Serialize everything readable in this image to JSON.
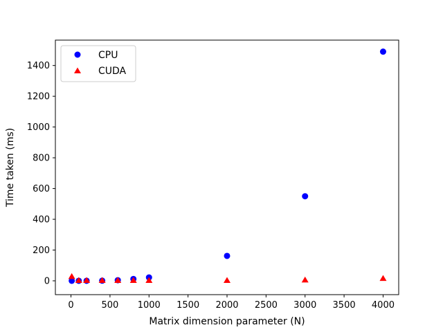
{
  "chart_data": {
    "type": "scatter",
    "title": "",
    "xlabel": "Matrix dimension parameter (N)",
    "ylabel": "Time taken (ms)",
    "xlim": [
      -200,
      4200
    ],
    "ylim": [
      -90,
      1565
    ],
    "xticks": [
      0,
      500,
      1000,
      1500,
      2000,
      2500,
      3000,
      3500,
      4000
    ],
    "yticks": [
      0,
      200,
      400,
      600,
      800,
      1000,
      1200,
      1400
    ],
    "grid": false,
    "legend_position": "top-left",
    "series": [
      {
        "name": "CPU",
        "marker": "circle",
        "color": "#0000ff",
        "x": [
          10,
          100,
          200,
          400,
          600,
          800,
          1000,
          2000,
          3000,
          4000
        ],
        "y": [
          0,
          0,
          0,
          1,
          4,
          12,
          22,
          162,
          550,
          1490
        ]
      },
      {
        "name": "CUDA",
        "marker": "triangle",
        "color": "#ff0000",
        "x": [
          10,
          100,
          200,
          400,
          600,
          800,
          1000,
          2000,
          3000,
          4000
        ],
        "y": [
          25,
          0,
          0,
          0,
          0,
          0,
          0,
          0,
          3,
          13
        ]
      }
    ]
  }
}
